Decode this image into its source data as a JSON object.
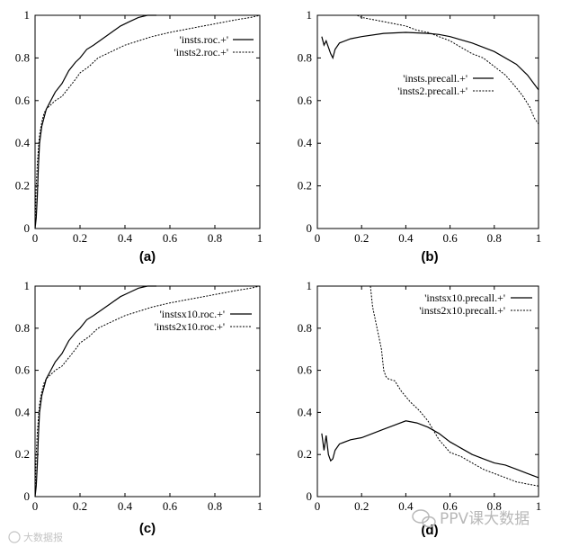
{
  "chart_data": [
    {
      "id": "a",
      "type": "line",
      "caption": "(a)",
      "xlim": [
        0,
        1
      ],
      "ylim": [
        0,
        1
      ],
      "xticks": [
        "0",
        "0.2",
        "0.4",
        "0.6",
        "0.8",
        "1"
      ],
      "yticks": [
        "0",
        "0.2",
        "0.4",
        "0.6",
        "0.8",
        "1"
      ],
      "legend_position": "top-right",
      "series": [
        {
          "name": "'insts.roc.+'",
          "style": "solid",
          "x": [
            0,
            0.005,
            0.01,
            0.015,
            0.02,
            0.03,
            0.04,
            0.05,
            0.07,
            0.09,
            0.12,
            0.15,
            0.18,
            0.2,
            0.23,
            0.26,
            0.3,
            0.34,
            0.38,
            0.42,
            0.46,
            0.5,
            0.54
          ],
          "y": [
            0,
            0.05,
            0.15,
            0.3,
            0.4,
            0.48,
            0.52,
            0.56,
            0.6,
            0.64,
            0.68,
            0.74,
            0.78,
            0.8,
            0.84,
            0.86,
            0.89,
            0.92,
            0.95,
            0.97,
            0.99,
            1.0,
            1.0
          ]
        },
        {
          "name": "'insts2.roc.+'",
          "style": "dashed",
          "x": [
            0,
            0.005,
            0.01,
            0.015,
            0.02,
            0.03,
            0.04,
            0.05,
            0.07,
            0.09,
            0.12,
            0.15,
            0.18,
            0.2,
            0.24,
            0.28,
            0.32,
            0.36,
            0.4,
            0.46,
            0.52,
            0.6,
            0.7,
            0.8,
            0.9,
            0.96,
            1.0
          ],
          "y": [
            0,
            0.2,
            0.3,
            0.38,
            0.44,
            0.5,
            0.54,
            0.56,
            0.58,
            0.6,
            0.62,
            0.66,
            0.7,
            0.73,
            0.76,
            0.8,
            0.82,
            0.84,
            0.86,
            0.88,
            0.9,
            0.92,
            0.94,
            0.96,
            0.98,
            0.99,
            1.0
          ]
        }
      ]
    },
    {
      "id": "b",
      "type": "line",
      "caption": "(b)",
      "xlim": [
        0,
        1
      ],
      "ylim": [
        0,
        1
      ],
      "xticks": [
        "0",
        "0.2",
        "0.4",
        "0.6",
        "0.8",
        "1"
      ],
      "yticks": [
        "0",
        "0.2",
        "0.4",
        "0.6",
        "0.8",
        "1"
      ],
      "legend_position": "center-right",
      "series": [
        {
          "name": "'insts.precall.+'",
          "style": "solid",
          "x": [
            0.02,
            0.03,
            0.04,
            0.05,
            0.06,
            0.07,
            0.08,
            0.1,
            0.15,
            0.2,
            0.3,
            0.4,
            0.5,
            0.55,
            0.6,
            0.7,
            0.8,
            0.9,
            0.95,
            1.0
          ],
          "y": [
            0.9,
            0.86,
            0.88,
            0.85,
            0.82,
            0.8,
            0.84,
            0.87,
            0.89,
            0.9,
            0.915,
            0.92,
            0.915,
            0.91,
            0.9,
            0.87,
            0.83,
            0.77,
            0.72,
            0.65
          ]
        },
        {
          "name": "'insts2.precall.+'",
          "style": "dashed",
          "x": [
            0.18,
            0.2,
            0.25,
            0.3,
            0.35,
            0.4,
            0.45,
            0.5,
            0.55,
            0.6,
            0.65,
            0.7,
            0.75,
            0.8,
            0.85,
            0.9,
            0.93,
            0.96,
            0.98,
            1.0
          ],
          "y": [
            1.0,
            0.99,
            0.98,
            0.97,
            0.96,
            0.95,
            0.93,
            0.92,
            0.9,
            0.88,
            0.85,
            0.82,
            0.8,
            0.76,
            0.72,
            0.66,
            0.62,
            0.57,
            0.52,
            0.49
          ]
        }
      ]
    },
    {
      "id": "c",
      "type": "line",
      "caption": "(c)",
      "xlim": [
        0,
        1
      ],
      "ylim": [
        0,
        1
      ],
      "xticks": [
        "0",
        "0.2",
        "0.4",
        "0.6",
        "0.8",
        "1"
      ],
      "yticks": [
        "0",
        "0.2",
        "0.4",
        "0.6",
        "0.8",
        "1"
      ],
      "legend_position": "top-right",
      "series": [
        {
          "name": "'instsx10.roc.+'",
          "style": "solid",
          "x": [
            0,
            0.005,
            0.01,
            0.015,
            0.02,
            0.03,
            0.04,
            0.05,
            0.07,
            0.09,
            0.12,
            0.15,
            0.18,
            0.2,
            0.23,
            0.26,
            0.3,
            0.34,
            0.38,
            0.42,
            0.46,
            0.5,
            0.54
          ],
          "y": [
            0,
            0.05,
            0.15,
            0.3,
            0.4,
            0.48,
            0.52,
            0.56,
            0.6,
            0.64,
            0.68,
            0.74,
            0.78,
            0.8,
            0.84,
            0.86,
            0.89,
            0.92,
            0.95,
            0.97,
            0.99,
            1.0,
            1.0
          ]
        },
        {
          "name": "'insts2x10.roc.+'",
          "style": "dashed",
          "x": [
            0,
            0.005,
            0.01,
            0.015,
            0.02,
            0.03,
            0.04,
            0.05,
            0.07,
            0.09,
            0.12,
            0.15,
            0.18,
            0.2,
            0.24,
            0.28,
            0.32,
            0.36,
            0.4,
            0.46,
            0.52,
            0.6,
            0.7,
            0.8,
            0.9,
            0.96,
            1.0
          ],
          "y": [
            0,
            0.2,
            0.3,
            0.38,
            0.44,
            0.5,
            0.54,
            0.56,
            0.58,
            0.6,
            0.62,
            0.66,
            0.7,
            0.73,
            0.76,
            0.8,
            0.82,
            0.84,
            0.86,
            0.88,
            0.9,
            0.92,
            0.94,
            0.96,
            0.98,
            0.99,
            1.0
          ]
        }
      ]
    },
    {
      "id": "d",
      "type": "line",
      "caption": "(d)",
      "xlim": [
        0,
        1
      ],
      "ylim": [
        0,
        1
      ],
      "xticks": [
        "0",
        "0.2",
        "0.4",
        "0.6",
        "0.8",
        "1"
      ],
      "yticks": [
        "0",
        "0.2",
        "0.4",
        "0.6",
        "0.8",
        "1"
      ],
      "legend_position": "top-right",
      "series": [
        {
          "name": "'instsx10.precall.+'",
          "style": "solid",
          "x": [
            0.02,
            0.03,
            0.04,
            0.05,
            0.06,
            0.07,
            0.08,
            0.1,
            0.15,
            0.2,
            0.25,
            0.3,
            0.35,
            0.4,
            0.45,
            0.5,
            0.55,
            0.6,
            0.65,
            0.7,
            0.75,
            0.8,
            0.85,
            0.9,
            0.95,
            1.0
          ],
          "y": [
            0.3,
            0.22,
            0.29,
            0.2,
            0.17,
            0.18,
            0.22,
            0.25,
            0.27,
            0.28,
            0.3,
            0.32,
            0.34,
            0.36,
            0.35,
            0.33,
            0.3,
            0.26,
            0.23,
            0.2,
            0.18,
            0.16,
            0.15,
            0.13,
            0.11,
            0.09
          ]
        },
        {
          "name": "'insts2x10.precall.+'",
          "style": "dashed",
          "x": [
            0.24,
            0.25,
            0.27,
            0.29,
            0.3,
            0.31,
            0.32,
            0.35,
            0.38,
            0.42,
            0.46,
            0.5,
            0.55,
            0.6,
            0.65,
            0.7,
            0.75,
            0.8,
            0.85,
            0.9,
            0.95,
            1.0
          ],
          "y": [
            1.0,
            0.9,
            0.8,
            0.7,
            0.6,
            0.57,
            0.56,
            0.55,
            0.5,
            0.45,
            0.41,
            0.36,
            0.27,
            0.21,
            0.19,
            0.16,
            0.13,
            0.11,
            0.09,
            0.07,
            0.06,
            0.05
          ]
        }
      ]
    }
  ],
  "watermark": {
    "left_text": "大数据报",
    "right_text": "PPV课大数据",
    "color": "#b8b8b8"
  }
}
